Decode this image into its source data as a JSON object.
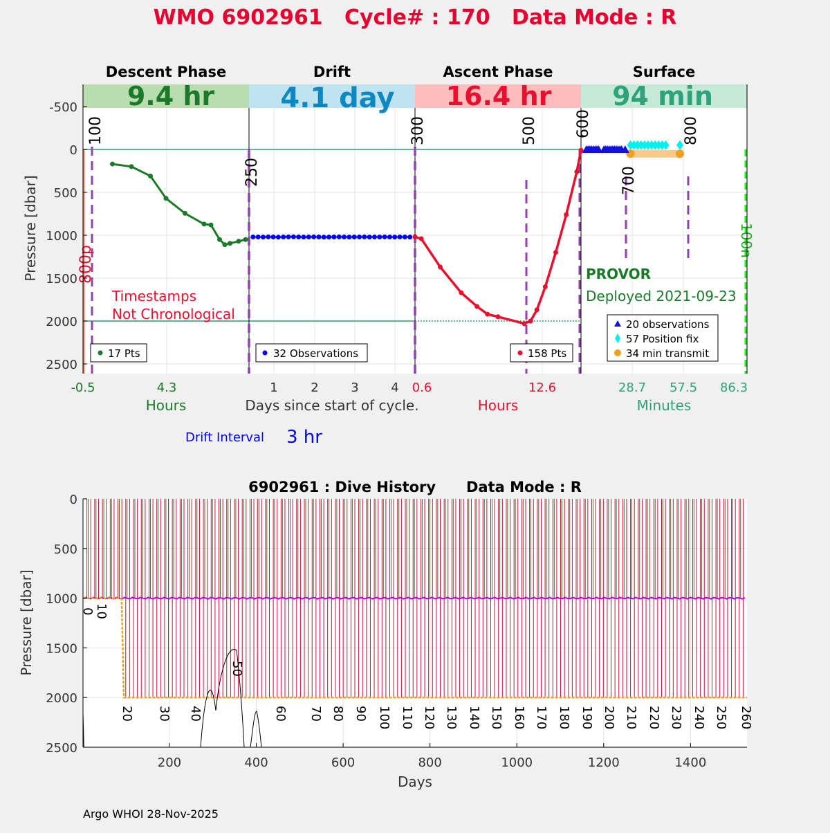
{
  "page": {
    "title": "WMO 6902961   Cycle# : 170   Data Mode : R",
    "footer": "Argo WHOI 28-Nov-2025"
  },
  "colors": {
    "title": "#e8002e",
    "descent": "#1a7a2a",
    "descent_band": "#b9ddae",
    "drift": "#0000ff",
    "drift_text": "#0e88c0",
    "drift_band": "#bfe3f0",
    "ascent": "#e8102e",
    "ascent_band": "#ffbcbc",
    "surface": "#2ea27a",
    "surface_band": "#c6ead8",
    "marker": "#8e44a8",
    "ref_line": "#2e9a7a",
    "surf_obs": "#1010e0",
    "pos_fix": "#00f0f0",
    "transmit": "#f0a020",
    "transmit_bar": "#f7c98a"
  },
  "top": {
    "ylabel": "Pressure [dbar]",
    "yticks": [
      "-500",
      "0",
      "500",
      "1000",
      "1500",
      "2000",
      "2500"
    ],
    "phases": [
      {
        "name": "Descent Phase",
        "duration": "9.4 hr"
      },
      {
        "name": "Drift",
        "duration": "4.1 day"
      },
      {
        "name": "Ascent Phase",
        "duration": "16.4 hr"
      },
      {
        "name": "Surface",
        "duration": "94 min"
      }
    ],
    "descent_xticks": [
      "-0.5",
      "4.3"
    ],
    "descent_xlabel": "Hours",
    "drift_xticks": [
      "1",
      "2",
      "3",
      "4"
    ],
    "drift_xlabel": "Days since start of cycle.",
    "ascent_xticks": [
      "0.6",
      "12.6"
    ],
    "ascent_xlabel": "Hours",
    "surface_xticks": [
      "28.7",
      "57.5",
      "86.3"
    ],
    "surface_xlabel": "Minutes",
    "vert_labels": [
      "100",
      "250",
      "300",
      "500",
      "600",
      "700",
      "800"
    ],
    "label_800p": "800p",
    "label_100n": "100n",
    "timestamps_note": [
      "Timestamps",
      "Not Chronological"
    ],
    "legend_descent": "17 Pts",
    "legend_drift": "32 Observations",
    "legend_ascent": "158 Pts",
    "legend_surface": [
      "20 observations",
      "57 Position fix",
      "34 min transmit"
    ],
    "float_type": "PROVOR",
    "deployed": "Deployed 2021-09-23",
    "drift_interval_label": "Drift Interval",
    "drift_interval_value": "3 hr"
  },
  "bottom": {
    "title": "6902961 : Dive History      Data Mode : R",
    "ylabel": "Pressure [dbar]",
    "xlabel": "Days",
    "yticks": [
      "0",
      "500",
      "1000",
      "1500",
      "2000",
      "2500"
    ],
    "xticks": [
      "200",
      "400",
      "600",
      "800",
      "1000",
      "1200",
      "1400"
    ],
    "cycle_labels": [
      "0",
      "10",
      "20",
      "30",
      "40",
      "50",
      "60",
      "70",
      "80",
      "90",
      "100",
      "110",
      "120",
      "130",
      "140",
      "150",
      "160",
      "170",
      "180",
      "190",
      "200",
      "210",
      "220",
      "230",
      "240",
      "250",
      "260"
    ]
  },
  "chart_data": [
    {
      "type": "line",
      "panel": "Descent Phase",
      "x_unit": "Hours",
      "y_unit": "dbar",
      "ylim": [
        2600,
        -750
      ],
      "xlim": [
        -0.5,
        9.1
      ],
      "series": [
        {
          "name": "17 Pts",
          "x": [
            1.2,
            2.3,
            3.4,
            4.3,
            5.4,
            6.5,
            6.9,
            7.4,
            7.7,
            8.0,
            8.5,
            8.9
          ],
          "y": [
            170,
            200,
            310,
            570,
            745,
            870,
            880,
            1050,
            1110,
            1095,
            1070,
            1050
          ]
        }
      ]
    },
    {
      "type": "scatter",
      "panel": "Drift",
      "x_unit": "Days since start of cycle",
      "y_unit": "dbar",
      "ylim": [
        2600,
        -750
      ],
      "xlim": [
        0.4,
        4.5
      ],
      "series": [
        {
          "name": "32 Observations",
          "x": [
            0.5,
            0.625,
            0.75,
            0.875,
            1.0,
            1.125,
            1.25,
            1.375,
            1.5,
            1.625,
            1.75,
            1.875,
            2.0,
            2.125,
            2.25,
            2.375,
            2.5,
            2.625,
            2.75,
            2.875,
            3.0,
            3.125,
            3.25,
            3.375,
            3.5,
            3.625,
            3.75,
            3.875,
            4.0,
            4.125,
            4.25,
            4.375
          ],
          "y": [
            1020,
            1020,
            1021,
            1019,
            1020,
            1022,
            1020,
            1019,
            1018,
            1020,
            1021,
            1020,
            1019,
            1020,
            1022,
            1021,
            1020,
            1019,
            1020,
            1021,
            1020,
            1020,
            1019,
            1021,
            1020,
            1020,
            1019,
            1020,
            1021,
            1020,
            1020,
            1021
          ]
        }
      ]
    },
    {
      "type": "line",
      "panel": "Ascent Phase",
      "x_unit": "Hours",
      "y_unit": "dbar",
      "ylim": [
        2600,
        -750
      ],
      "xlim": [
        0.6,
        16.4
      ],
      "series": [
        {
          "name": "158 Pts",
          "x": [
            0.6,
            1.2,
            3.0,
            5.0,
            6.5,
            7.5,
            8.5,
            11.0,
            11.6,
            12.2,
            13.0,
            14.0,
            15.0,
            16.0,
            16.4
          ],
          "y": [
            1020,
            1040,
            1370,
            1670,
            1830,
            1920,
            1950,
            2030,
            2000,
            1870,
            1600,
            1200,
            760,
            260,
            10
          ]
        }
      ]
    },
    {
      "type": "scatter",
      "panel": "Surface",
      "x_unit": "Minutes",
      "y_unit": "dbar",
      "ylim": [
        2600,
        -750
      ],
      "xlim": [
        0,
        94
      ],
      "series": [
        {
          "name": "20 observations",
          "x": [
            3,
            4,
            5,
            6,
            7,
            8,
            9,
            10,
            13,
            14,
            15,
            16,
            17,
            18,
            19,
            20,
            21,
            22,
            23,
            25
          ],
          "y": [
            0,
            0,
            0,
            0,
            0,
            0,
            0,
            0,
            0,
            0,
            0,
            0,
            0,
            0,
            0,
            0,
            0,
            0,
            0,
            0
          ]
        },
        {
          "name": "57 Position fix",
          "x": [
            28,
            30,
            32,
            34,
            36,
            38,
            40,
            42,
            44,
            46,
            48,
            56
          ],
          "y": [
            -50,
            -50,
            -50,
            -50,
            -50,
            -50,
            -50,
            -50,
            -50,
            -50,
            -50,
            -50
          ]
        },
        {
          "name": "34 min transmit",
          "x": [
            28,
            56
          ],
          "y": [
            50,
            50
          ]
        }
      ]
    },
    {
      "type": "line",
      "panel": "Dive History",
      "x_unit": "Days",
      "y_unit": "dbar",
      "ylim": [
        2500,
        0
      ],
      "xlim": [
        1,
        1530
      ],
      "cycles": 170,
      "profile_depth": 2000,
      "first_deep_day": 95,
      "drift_depth": 1000
    }
  ]
}
